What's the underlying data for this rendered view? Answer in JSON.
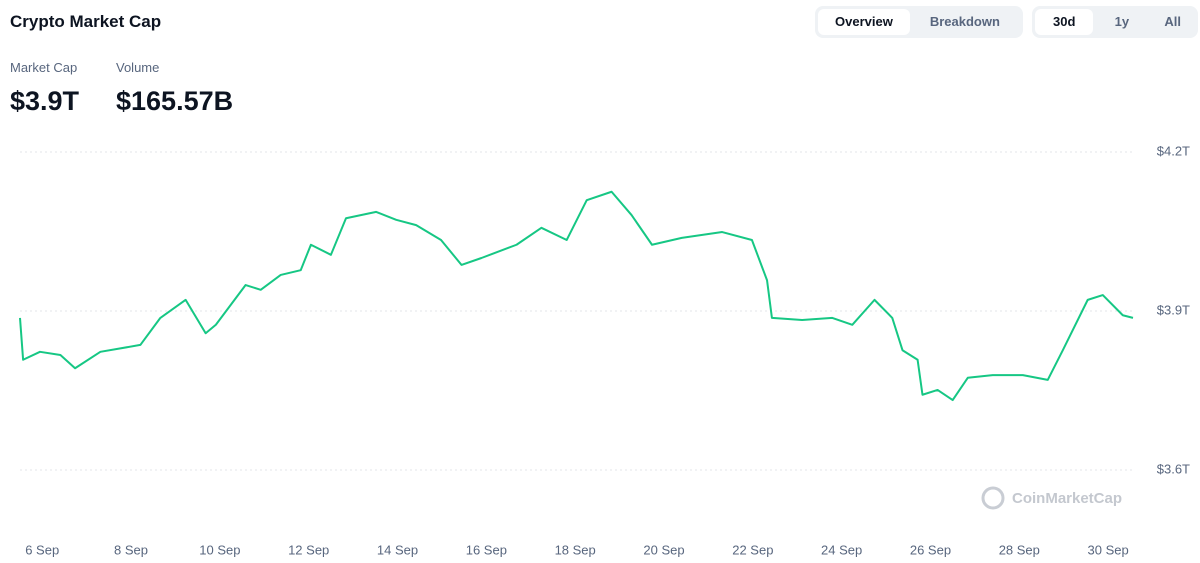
{
  "header": {
    "title": "Crypto Market Cap",
    "stats": [
      {
        "label": "Market Cap",
        "value": "$3.9T"
      },
      {
        "label": "Volume",
        "value": "$165.57B"
      }
    ],
    "view_tabs": [
      "Overview",
      "Breakdown"
    ],
    "range_tabs": [
      "30d",
      "1y",
      "All"
    ],
    "watermark": "CoinMarketCap"
  },
  "chart_data": {
    "type": "line",
    "x": [
      5.5,
      5.57,
      5.95,
      6.41,
      6.74,
      7.31,
      8.21,
      8.66,
      9.23,
      9.68,
      9.91,
      10.58,
      10.92,
      11.37,
      11.82,
      12.05,
      12.5,
      12.84,
      13.52,
      13.97,
      14.42,
      14.98,
      15.44,
      15.89,
      16.68,
      17.24,
      17.81,
      18.26,
      18.82,
      19.27,
      19.73,
      20.4,
      21.31,
      21.98,
      22.32,
      22.43,
      23.11,
      23.79,
      24.24,
      24.74,
      25.14,
      25.37,
      25.71,
      25.82,
      26.16,
      26.5,
      26.84,
      27.4,
      28.08,
      28.64,
      28.98,
      29.54,
      29.88,
      30.33,
      30.56
    ],
    "series": [
      {
        "name": "Market Cap",
        "color": "#16c784",
        "values": [
          3.887,
          3.808,
          3.823,
          3.817,
          3.792,
          3.823,
          3.836,
          3.887,
          3.921,
          3.858,
          3.874,
          3.949,
          3.94,
          3.968,
          3.977,
          4.025,
          4.006,
          4.075,
          4.087,
          4.072,
          4.062,
          4.034,
          3.987,
          4.0,
          4.025,
          4.057,
          4.034,
          4.109,
          4.125,
          4.081,
          4.025,
          4.038,
          4.049,
          4.034,
          3.958,
          3.887,
          3.883,
          3.887,
          3.874,
          3.921,
          3.887,
          3.826,
          3.808,
          3.742,
          3.751,
          3.732,
          3.774,
          3.779,
          3.779,
          3.77,
          3.826,
          3.921,
          3.93,
          3.892,
          3.887
        ]
      }
    ],
    "xlim": [
      5.5,
      30.56
    ],
    "xticks": [
      {
        "value": 6,
        "label": "6 Sep"
      },
      {
        "value": 8,
        "label": "8 Sep"
      },
      {
        "value": 10,
        "label": "10 Sep"
      },
      {
        "value": 12,
        "label": "12 Sep"
      },
      {
        "value": 14,
        "label": "14 Sep"
      },
      {
        "value": 16,
        "label": "16 Sep"
      },
      {
        "value": 18,
        "label": "18 Sep"
      },
      {
        "value": 20,
        "label": "20 Sep"
      },
      {
        "value": 22,
        "label": "22 Sep"
      },
      {
        "value": 24,
        "label": "24 Sep"
      },
      {
        "value": 26,
        "label": "26 Sep"
      },
      {
        "value": 28,
        "label": "28 Sep"
      },
      {
        "value": 30,
        "label": "30 Sep"
      }
    ],
    "ylim": [
      3.6,
      4.2
    ],
    "yticks": [
      {
        "value": 4.2,
        "label": "$4.2T"
      },
      {
        "value": 3.9,
        "label": "$3.9T"
      },
      {
        "value": 3.6,
        "label": "$3.6T"
      }
    ],
    "grid": true
  }
}
